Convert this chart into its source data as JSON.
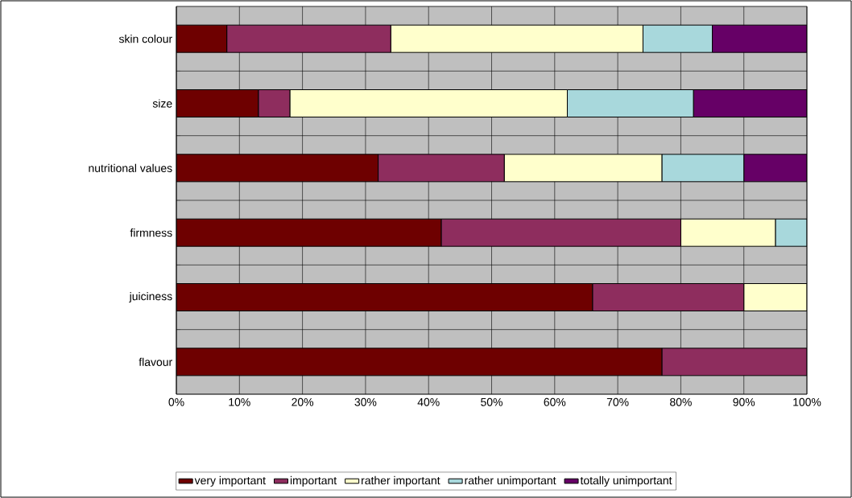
{
  "chart_data": {
    "type": "bar",
    "orientation": "horizontal",
    "stacked": true,
    "categories": [
      "skin colour",
      "size",
      "nutritional values",
      "firmness",
      "juiciness",
      "flavour"
    ],
    "series": [
      {
        "name": "very important",
        "color": "#6e0000",
        "values": [
          8,
          13,
          32,
          42,
          66,
          77
        ]
      },
      {
        "name": "important",
        "color": "#8e2d5e",
        "values": [
          26,
          5,
          20,
          38,
          24,
          23
        ]
      },
      {
        "name": "rather important",
        "color": "#ffffcc",
        "values": [
          40,
          44,
          25,
          15,
          10,
          0
        ]
      },
      {
        "name": "rather unimportant",
        "color": "#a8d8dc",
        "values": [
          11,
          20,
          13,
          5,
          0,
          0
        ]
      },
      {
        "name": "totally unimportant",
        "color": "#660066",
        "values": [
          15,
          18,
          10,
          0,
          0,
          0
        ]
      }
    ],
    "xlim": [
      0,
      100
    ],
    "xticks": [
      {
        "value": 0,
        "label": "0%"
      },
      {
        "value": 10,
        "label": "10%"
      },
      {
        "value": 20,
        "label": "20%"
      },
      {
        "value": 30,
        "label": "30%"
      },
      {
        "value": 40,
        "label": "40%"
      },
      {
        "value": 50,
        "label": "50%"
      },
      {
        "value": 60,
        "label": "60%"
      },
      {
        "value": 70,
        "label": "70%"
      },
      {
        "value": 80,
        "label": "80%"
      },
      {
        "value": 90,
        "label": "90%"
      },
      {
        "value": 100,
        "label": "100%"
      }
    ],
    "grid": true,
    "legend": "bottom"
  }
}
